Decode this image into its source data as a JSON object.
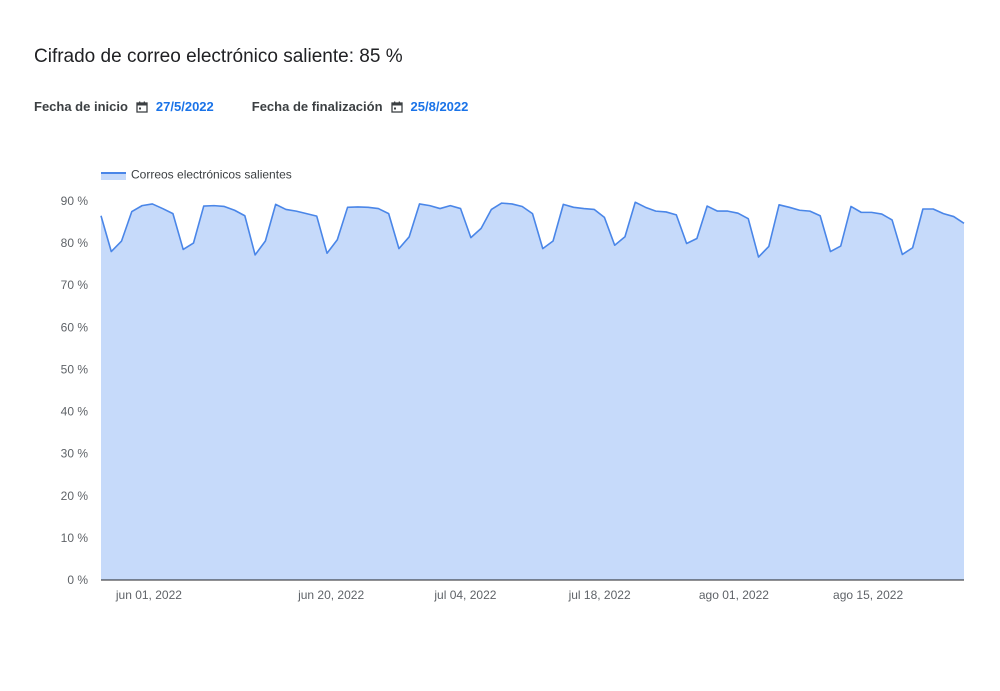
{
  "header": {
    "title": "Cifrado de correo electrónico saliente: 85 %",
    "start_label": "Fecha de inicio",
    "start_value": "27/5/2022",
    "end_label": "Fecha de finalización",
    "end_value": "25/8/2022",
    "calendar_icon": "calendar-icon"
  },
  "colors": {
    "line": "#4a86e8",
    "area": "#c6dafa",
    "link": "#1a73e8",
    "axis": "#5f6368"
  },
  "chart_data": {
    "type": "area",
    "x_start": "2022-05-27",
    "x_end": "2022-08-25",
    "ylim": [
      0,
      90
    ],
    "yticks": [
      "0 %",
      "10 %",
      "20 %",
      "30 %",
      "40 %",
      "50 %",
      "60 %",
      "70 %",
      "80 %",
      "90 %"
    ],
    "xticks": [
      {
        "date": "2022-06-01",
        "label": "jun 01, 2022"
      },
      {
        "date": "2022-06-20",
        "label": "jun 20, 2022"
      },
      {
        "date": "2022-07-04",
        "label": "jul 04, 2022"
      },
      {
        "date": "2022-07-18",
        "label": "jul 18, 2022"
      },
      {
        "date": "2022-08-01",
        "label": "ago 01, 2022"
      },
      {
        "date": "2022-08-15",
        "label": "ago 15, 2022"
      }
    ],
    "legend": "top-left",
    "grid": false,
    "series": [
      {
        "name": "Correos electrónicos salientes",
        "values": [
          86.5,
          78.0,
          80.5,
          87.5,
          88.9,
          89.3,
          88.2,
          87.0,
          78.5,
          80.0,
          88.8,
          88.9,
          88.7,
          87.8,
          86.5,
          77.2,
          80.5,
          89.2,
          88.0,
          87.6,
          87.0,
          86.4,
          77.6,
          80.8,
          88.5,
          88.6,
          88.5,
          88.2,
          87.0,
          78.7,
          81.5,
          89.3,
          88.9,
          88.2,
          88.9,
          88.2,
          81.3,
          83.5,
          88.0,
          89.5,
          89.3,
          88.7,
          87.0,
          78.7,
          80.5,
          89.2,
          88.5,
          88.2,
          88.0,
          86.1,
          79.5,
          81.5,
          89.7,
          88.5,
          87.6,
          87.4,
          86.7,
          79.9,
          81.1,
          88.8,
          87.6,
          87.6,
          87.1,
          85.8,
          76.7,
          79.2,
          89.1,
          88.5,
          87.8,
          87.6,
          86.5,
          78.0,
          79.3,
          88.7,
          87.3,
          87.3,
          86.9,
          85.5,
          77.3,
          78.9,
          88.1,
          88.1,
          87.0,
          86.3,
          84.7
        ]
      }
    ]
  }
}
